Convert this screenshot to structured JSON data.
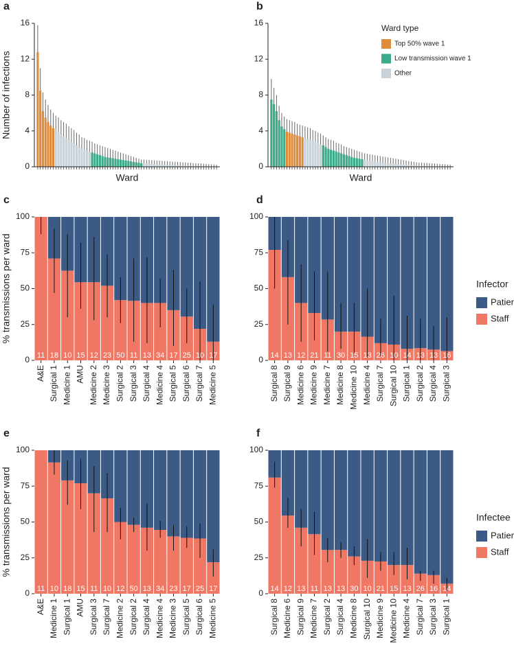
{
  "chart_data": [
    {
      "type": "bar",
      "panel": "a",
      "y_label": "Number of infections",
      "x_label": "Ward",
      "ylim": [
        0,
        16
      ],
      "yticks": [
        0,
        4,
        8,
        12,
        16
      ],
      "series": [
        {
          "color": "#e08b3a",
          "x": [
            0,
            1,
            2,
            3,
            4,
            5,
            6
          ],
          "values": [
            12.8,
            8.5,
            6.2,
            5.5,
            5.0,
            4.6,
            4.3
          ],
          "upper": [
            15.8,
            11.0,
            8.3,
            7.5,
            6.9,
            6.4,
            6.0
          ]
        },
        {
          "color": "#3daa8b",
          "x": [
            21,
            22,
            23,
            24,
            25,
            26,
            27,
            28,
            29,
            30,
            31,
            32,
            33,
            34,
            35,
            36,
            37,
            38,
            39,
            40
          ],
          "values": [
            1.6,
            1.5,
            1.4,
            1.3,
            1.2,
            1.1,
            1.05,
            1.0,
            0.95,
            0.9,
            0.85,
            0.8,
            0.75,
            0.7,
            0.65,
            0.6,
            0.55,
            0.5,
            0.45,
            0.4
          ],
          "upper": [
            2.8,
            2.6,
            2.5,
            2.4,
            2.3,
            2.2,
            2.1,
            2.0,
            1.9,
            1.8,
            1.7,
            1.6,
            1.5,
            1.4,
            1.3,
            1.2,
            1.1,
            1.0,
            0.9,
            0.8
          ]
        },
        {
          "color": "#c8d2d8",
          "x": [
            7,
            8,
            9,
            10,
            11,
            12,
            13,
            14,
            15,
            16,
            17,
            18,
            19,
            20,
            41,
            42,
            43,
            44,
            45,
            46,
            47,
            48,
            49,
            50,
            51,
            52,
            53,
            54,
            55,
            56,
            57,
            58,
            59,
            60,
            61,
            62,
            63,
            64,
            65,
            66,
            67,
            68,
            69
          ],
          "values": [
            4.1,
            3.9,
            3.6,
            3.4,
            3.2,
            3.0,
            2.8,
            2.6,
            2.4,
            2.2,
            2.0,
            1.9,
            1.8,
            1.7,
            0.38,
            0.36,
            0.34,
            0.32,
            0.3,
            0.28,
            0.26,
            0.24,
            0.22,
            0.2,
            0.19,
            0.18,
            0.17,
            0.16,
            0.15,
            0.14,
            0.13,
            0.12,
            0.11,
            0.1,
            0.09,
            0.08,
            0.07,
            0.06,
            0.05,
            0.05,
            0.04,
            0.04,
            0.03
          ],
          "upper": [
            5.7,
            5.5,
            5.2,
            5.0,
            4.8,
            4.5,
            4.3,
            4.1,
            3.8,
            3.6,
            3.3,
            3.2,
            3.0,
            2.9,
            0.8,
            0.78,
            0.76,
            0.74,
            0.72,
            0.7,
            0.68,
            0.66,
            0.64,
            0.62,
            0.6,
            0.58,
            0.56,
            0.54,
            0.52,
            0.5,
            0.48,
            0.46,
            0.44,
            0.42,
            0.4,
            0.38,
            0.36,
            0.34,
            0.32,
            0.3,
            0.28,
            0.26,
            0.24
          ]
        }
      ]
    },
    {
      "type": "bar",
      "panel": "b",
      "x_label": "Ward",
      "legend_title": "Ward type",
      "ylim": [
        0,
        16
      ],
      "yticks": [
        0,
        4,
        8,
        12,
        16
      ],
      "series": [
        {
          "name": "Top 50% wave 1",
          "color": "#e08b3a",
          "x": [
            6,
            7,
            8,
            9,
            10,
            11,
            12
          ],
          "values": [
            3.9,
            3.8,
            3.7,
            3.6,
            3.5,
            3.4,
            3.3
          ],
          "upper": [
            5.3,
            5.2,
            5.1,
            5.0,
            4.8,
            4.7,
            4.6
          ]
        },
        {
          "name": "Low transmission wave 1",
          "color": "#3daa8b",
          "x": [
            0,
            1,
            2,
            3,
            4,
            5,
            20,
            21,
            22,
            23,
            24,
            25,
            26,
            27,
            28,
            29,
            30,
            31,
            32,
            33,
            34,
            35
          ],
          "values": [
            7.5,
            7.0,
            6.2,
            5.2,
            4.5,
            4.2,
            2.4,
            2.2,
            2.0,
            1.9,
            1.8,
            1.7,
            1.6,
            1.5,
            1.4,
            1.3,
            1.2,
            1.1,
            1.0,
            0.95,
            0.9,
            0.85
          ],
          "upper": [
            9.8,
            8.8,
            8.0,
            6.8,
            6.0,
            5.6,
            3.5,
            3.3,
            3.1,
            3.0,
            2.9,
            2.7,
            2.6,
            2.5,
            2.3,
            2.2,
            2.1,
            2.0,
            1.9,
            1.8,
            1.7,
            1.6
          ]
        },
        {
          "name": "Other",
          "color": "#c8d2d8",
          "x": [
            13,
            14,
            15,
            16,
            17,
            18,
            19,
            36,
            37,
            38,
            39,
            40,
            41,
            42,
            43,
            44,
            45,
            46,
            47,
            48,
            49,
            50,
            51,
            52,
            53,
            54,
            55,
            56,
            57,
            58,
            59,
            60,
            61,
            62,
            63,
            64,
            65,
            66,
            67,
            68,
            69
          ],
          "values": [
            3.2,
            3.1,
            3.0,
            2.9,
            2.8,
            2.6,
            2.5,
            0.8,
            0.75,
            0.7,
            0.65,
            0.6,
            0.55,
            0.5,
            0.45,
            0.42,
            0.4,
            0.38,
            0.35,
            0.32,
            0.3,
            0.28,
            0.25,
            0.22,
            0.2,
            0.18,
            0.16,
            0.14,
            0.12,
            0.1,
            0.09,
            0.08,
            0.07,
            0.06,
            0.05,
            0.05,
            0.04,
            0.04,
            0.03,
            0.03,
            0.02
          ],
          "upper": [
            4.5,
            4.4,
            4.3,
            4.1,
            4.0,
            3.8,
            3.7,
            1.5,
            1.45,
            1.4,
            1.35,
            1.3,
            1.25,
            1.2,
            1.15,
            1.1,
            1.05,
            1.0,
            0.95,
            0.9,
            0.85,
            0.8,
            0.75,
            0.7,
            0.65,
            0.6,
            0.55,
            0.5,
            0.48,
            0.46,
            0.44,
            0.42,
            0.4,
            0.38,
            0.36,
            0.34,
            0.32,
            0.3,
            0.28,
            0.26,
            0.24
          ]
        }
      ]
    },
    {
      "type": "stacked_bar",
      "panel": "c",
      "y_label": "% transmissions per ward",
      "ylim": [
        0,
        100
      ],
      "yticks": [
        0,
        25,
        50,
        75,
        100
      ],
      "categories": [
        "A&E",
        "Surgical 1",
        "Medicine 1",
        "AMU",
        "Medicine 2",
        "Medicine 3",
        "Surgical 2",
        "Surgical 3",
        "Surgical 4",
        "Medicine 4",
        "Surgical 5",
        "Surgical 6",
        "Surgical 7",
        "Medicine 5"
      ],
      "counts": [
        11,
        18,
        10,
        15,
        12,
        23,
        50,
        11,
        13,
        34,
        17,
        25,
        10,
        17
      ],
      "series": [
        {
          "name": "Patient",
          "color": "#3c5a86",
          "values": [
            0,
            29,
            37.5,
            45.5,
            45.5,
            48,
            58,
            58.5,
            60,
            60,
            65,
            69.5,
            78,
            87
          ]
        },
        {
          "name": "Staff",
          "color": "#ef7763",
          "values": [
            100,
            71,
            62.5,
            54.5,
            54.5,
            52,
            42,
            41.5,
            40,
            40,
            35,
            30.5,
            22,
            13
          ],
          "lower": [
            88,
            47,
            30,
            36,
            28,
            30,
            26,
            13,
            12,
            23,
            10,
            12,
            0,
            0
          ],
          "upper": [
            100,
            92,
            88,
            82,
            86,
            74,
            58,
            71,
            72,
            57,
            63,
            50,
            55,
            39
          ]
        }
      ]
    },
    {
      "type": "stacked_bar",
      "panel": "d",
      "legend_title": "Infector",
      "ylim": [
        0,
        100
      ],
      "yticks": [
        0,
        25,
        50,
        75,
        100
      ],
      "categories": [
        "Surgical 8",
        "Surgical 9",
        "Medicine 6",
        "Medicine 9",
        "Medicine 7",
        "Medicine 8",
        "Medicine 10",
        "Medicine 4",
        "Surgical 7",
        "Surgical 10",
        "Surgical 1",
        "Surgical 2",
        "Surgical 4",
        "Surgical 3"
      ],
      "counts": [
        14,
        13,
        12,
        21,
        11,
        30,
        15,
        13,
        26,
        10,
        14,
        13,
        13,
        16
      ],
      "series": [
        {
          "name": "Patient",
          "color": "#3c5a86",
          "values": [
            23,
            42,
            60,
            67,
            71.5,
            80,
            80,
            83.5,
            88,
            89,
            92,
            91.5,
            92.5,
            93.5
          ]
        },
        {
          "name": "Staff",
          "color": "#ef7763",
          "values": [
            77,
            58,
            40,
            33,
            28.5,
            20,
            20,
            16.5,
            12,
            11,
            8,
            8.5,
            7.5,
            6.5
          ],
          "lower": [
            50,
            25,
            13,
            14,
            6,
            8,
            5,
            2,
            3,
            0,
            0,
            0,
            0,
            0
          ],
          "upper": [
            100,
            84,
            67,
            62,
            62,
            40,
            40,
            50,
            29,
            45,
            31,
            29,
            24,
            30
          ]
        }
      ]
    },
    {
      "type": "stacked_bar",
      "panel": "e",
      "y_label": "% transmissions per ward",
      "ylim": [
        0,
        100
      ],
      "yticks": [
        0,
        25,
        50,
        75,
        100
      ],
      "categories": [
        "A&E",
        "Medicine 1",
        "Surgical 1",
        "AMU",
        "Surgical 3",
        "Surgical 7",
        "Medicine 2",
        "Surgical 2",
        "Surgical 4",
        "Medicine 4",
        "Medicine 3",
        "Surgical 5",
        "Surgical 6",
        "Medicine 5"
      ],
      "counts": [
        11,
        10,
        18,
        15,
        11,
        10,
        12,
        50,
        13,
        34,
        23,
        17,
        25,
        17
      ],
      "series": [
        {
          "name": "Patient",
          "color": "#3c5a86",
          "values": [
            0,
            8.5,
            21,
            23,
            30,
            33.5,
            50,
            52,
            54,
            55.5,
            60,
            61,
            61.5,
            78
          ]
        },
        {
          "name": "Staff",
          "color": "#ef7763",
          "values": [
            100,
            91.5,
            79,
            77,
            70,
            66.5,
            50,
            48,
            46,
            44.5,
            40,
            39,
            38.5,
            22
          ],
          "lower": [
            100,
            83,
            62,
            59,
            43,
            43,
            38,
            43,
            30,
            39,
            30,
            32,
            25,
            12
          ],
          "upper": [
            100,
            100,
            93,
            94,
            89,
            84,
            60,
            53,
            63,
            51,
            48,
            47,
            49,
            31
          ]
        }
      ]
    },
    {
      "type": "stacked_bar",
      "panel": "f",
      "legend_title": "Infectee",
      "ylim": [
        0,
        100
      ],
      "yticks": [
        0,
        25,
        50,
        75,
        100
      ],
      "categories": [
        "Surgical 8",
        "Medicine 6",
        "Surgical 9",
        "Medicine 7",
        "Surgical 2",
        "Surgical 4",
        "Medicine 8",
        "Surgical 10",
        "Medicine 9",
        "Medicine 10",
        "Medicine 4",
        "Surgical 7",
        "Surgical 3",
        "Surgical 1"
      ],
      "counts": [
        14,
        12,
        13,
        11,
        13,
        13,
        30,
        10,
        21,
        15,
        13,
        26,
        16,
        14
      ],
      "series": [
        {
          "name": "Patient",
          "color": "#3c5a86",
          "values": [
            19,
            45.5,
            54,
            58.5,
            69.5,
            69.5,
            74,
            77,
            77.5,
            80,
            80,
            86,
            87,
            93
          ]
        },
        {
          "name": "Staff",
          "color": "#ef7763",
          "values": [
            81,
            54.5,
            46,
            41.5,
            30.5,
            30.5,
            26,
            23,
            22.5,
            20,
            20,
            14,
            13,
            7
          ],
          "lower": [
            74,
            46,
            33,
            27,
            22,
            25,
            20,
            11,
            16,
            13,
            10,
            9,
            7,
            2
          ],
          "upper": [
            92,
            67,
            59,
            57,
            39,
            36,
            33,
            38,
            29,
            29,
            32,
            16,
            16,
            11
          ]
        }
      ]
    }
  ]
}
